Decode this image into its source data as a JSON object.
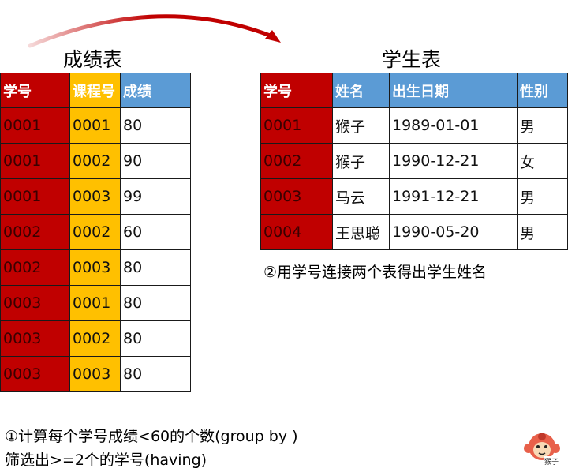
{
  "scores_table": {
    "title": "成绩表",
    "headers": [
      "学号",
      "课程号",
      "成绩"
    ],
    "rows": [
      [
        "0001",
        "0001",
        "80"
      ],
      [
        "0001",
        "0002",
        "90"
      ],
      [
        "0001",
        "0003",
        "99"
      ],
      [
        "0002",
        "0002",
        "60"
      ],
      [
        "0002",
        "0003",
        "80"
      ],
      [
        "0003",
        "0001",
        "80"
      ],
      [
        "0003",
        "0002",
        "80"
      ],
      [
        "0003",
        "0003",
        "80"
      ]
    ]
  },
  "students_table": {
    "title": "学生表",
    "headers": [
      "学号",
      "姓名",
      "出生日期",
      "性别"
    ],
    "rows": [
      [
        "0001",
        "猴子",
        "1989-01-01",
        "男"
      ],
      [
        "0002",
        "猴子",
        "1990-12-21",
        "女"
      ],
      [
        "0003",
        "马云",
        "1991-12-21",
        "男"
      ],
      [
        "0004",
        "王思聪",
        "1990-05-20",
        "男"
      ]
    ]
  },
  "notes": {
    "step2": "②用学号连接两个表得出学生姓名",
    "step1_line1": "①计算每个学号成绩<60的个数(group by )",
    "step1_line2": "筛选出>=2个的学号(having)"
  },
  "logo": {
    "text": "猴子"
  },
  "colors": {
    "key_red": "#c00000",
    "course_yellow": "#ffc000",
    "header_blue": "#5b9bd5",
    "arrow_red": "#c00000"
  }
}
